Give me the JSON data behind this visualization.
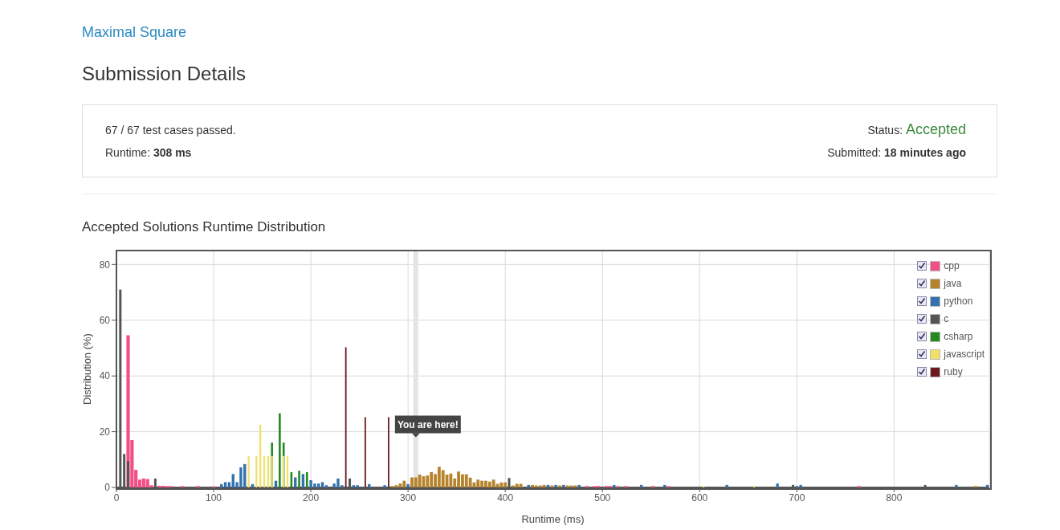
{
  "chart_data": {
    "type": "bar",
    "title": "Accepted Solutions Runtime Distribution",
    "annotations": [
      "Maximal Square",
      "Submission Details",
      "67 / 67 test cases passed.",
      "Runtime: 308 ms",
      "Status: Accepted",
      "Submitted: 18 minutes ago",
      {
        "text": "You are here!",
        "x": 308,
        "y": 18
      }
    ],
    "xlabel": "Runtime (ms)",
    "ylabel": "Distribution (%)",
    "series": [
      {
        "name": "cpp",
        "color": "#f24f86",
        "x": [
          12,
          16,
          20,
          24,
          28,
          32,
          36,
          44,
          48,
          52,
          56,
          68,
          84,
          100,
          484,
          492,
          496,
          504,
          508,
          516,
          524,
          552,
          568,
          764
        ],
        "values": [
          54.6,
          17,
          6.3,
          2.8,
          3.2,
          3,
          0.8,
          0.6,
          0.6,
          0.5,
          0.5,
          0.5,
          0.5,
          0.4,
          0.5,
          0.5,
          0.5,
          0.5,
          0.5,
          0.5,
          0.5,
          0.5,
          0.5,
          0.5
        ]
      },
      {
        "name": "java",
        "color": "#b5832c",
        "x": [
          284,
          288,
          292,
          296,
          304,
          308,
          312,
          316,
          320,
          324,
          328,
          332,
          336,
          340,
          344,
          348,
          352,
          356,
          360,
          364,
          368,
          372,
          376,
          380,
          384,
          388,
          392,
          396,
          400,
          408,
          412,
          416,
          428,
          432,
          436,
          440,
          448,
          456,
          464,
          468,
          472,
          884
        ],
        "values": [
          0.5,
          0.8,
          1.4,
          2.4,
          3.6,
          3.6,
          4.6,
          4,
          4.3,
          5.5,
          4.8,
          7.4,
          6.2,
          4.6,
          5,
          3.2,
          5.7,
          4.7,
          4.7,
          3.5,
          1.8,
          2.8,
          2.4,
          2.4,
          2.1,
          2.8,
          1.3,
          1.8,
          1.8,
          0.7,
          1.3,
          1.3,
          0.9,
          0.7,
          0.7,
          0.9,
          0.7,
          0.7,
          0.7,
          0.7,
          0.7,
          0.5
        ]
      },
      {
        "name": "python",
        "color": "#3372ae",
        "x": [
          108,
          112,
          116,
          120,
          124,
          128,
          132,
          140,
          164,
          184,
          192,
          200,
          204,
          208,
          212,
          216,
          224,
          228,
          232,
          244,
          248,
          260,
          276,
          300,
          424,
          444,
          452,
          460,
          476,
          512,
          540,
          564,
          628,
          680,
          700,
          704,
          864,
          896
        ],
        "values": [
          1.2,
          1.9,
          1.9,
          4.8,
          1.9,
          7.2,
          8.4,
          1.2,
          2.4,
          3.6,
          4.8,
          2.6,
          1.4,
          1.4,
          1.9,
          0.8,
          1.4,
          3.2,
          0.8,
          0.8,
          0.8,
          1.2,
          0.8,
          1.2,
          0.9,
          0.9,
          0.9,
          0.9,
          0.9,
          0.9,
          0.9,
          0.9,
          0.9,
          1.4,
          0.5,
          0.9,
          0.9,
          0.9
        ]
      },
      {
        "name": "c",
        "color": "#555555",
        "x": [
          4,
          8,
          12,
          40,
          240,
          404,
          696,
          832
        ],
        "values": [
          71,
          12,
          9.5,
          3.2,
          3.2,
          3.4,
          0.9,
          0.9
        ]
      },
      {
        "name": "csharp",
        "color": "#22891f",
        "x": [
          160,
          168,
          172,
          180,
          188,
          196
        ],
        "values": [
          16.1,
          26.6,
          16.1,
          5.5,
          6,
          5.5
        ]
      },
      {
        "name": "javascript",
        "color": "#f0e06a",
        "x": [
          136,
          144,
          148,
          152,
          156,
          160,
          172,
          176,
          604,
          656
        ],
        "values": [
          11.3,
          11.3,
          22.5,
          11.3,
          11.3,
          11.3,
          11.3,
          11.3,
          0.5,
          0.5
        ]
      },
      {
        "name": "ruby",
        "color": "#6e1820",
        "x": [
          236,
          256,
          280
        ],
        "values": [
          50.3,
          25.2,
          25.2
        ]
      }
    ],
    "xlim": [
      0,
      898
    ],
    "ylim": [
      0,
      85
    ],
    "xticks": [
      0,
      100,
      200,
      300,
      400,
      500,
      600,
      700,
      800
    ],
    "yticks": [
      0,
      20,
      40,
      60,
      80
    ],
    "grid": true,
    "legend": "top right",
    "ref_lines": [
      {
        "axis": "x",
        "value": 308,
        "color": "#e4e4e4"
      }
    ]
  }
}
